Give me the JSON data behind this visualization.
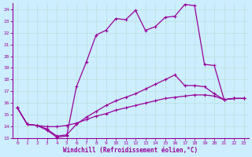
{
  "xlabel": "Windchill (Refroidissement éolien,°C)",
  "xlim": [
    -0.5,
    23.5
  ],
  "ylim": [
    13,
    24.5
  ],
  "xticks": [
    0,
    1,
    2,
    3,
    4,
    5,
    6,
    7,
    8,
    9,
    10,
    11,
    12,
    13,
    14,
    15,
    16,
    17,
    18,
    19,
    20,
    21,
    22,
    23
  ],
  "yticks": [
    13,
    14,
    15,
    16,
    17,
    18,
    19,
    20,
    21,
    22,
    23,
    24
  ],
  "background_color": "#cceeff",
  "line_color": "#990099",
  "grid_color": "#aaddcc",
  "line1_x": [
    0,
    1,
    2,
    3,
    4,
    5,
    6,
    7,
    8,
    9,
    10,
    11,
    12,
    13,
    14,
    15,
    16,
    17,
    18,
    19,
    20,
    21,
    22,
    23
  ],
  "line1_y": [
    15.6,
    14.2,
    14.1,
    13.7,
    13.1,
    13.2,
    17.4,
    19.5,
    21.8,
    22.2,
    23.2,
    23.1,
    23.9,
    22.2,
    22.5,
    23.3,
    23.4,
    24.4,
    24.3,
    19.3,
    19.2,
    16.3,
    16.4,
    16.4
  ],
  "line2_x": [
    0,
    1,
    2,
    3,
    4,
    5,
    6,
    7,
    8,
    9,
    10,
    11,
    12,
    13,
    14,
    15,
    16,
    17,
    18,
    19,
    20,
    21,
    22,
    23
  ],
  "line2_y": [
    15.6,
    14.2,
    14.1,
    13.8,
    13.2,
    13.3,
    14.2,
    14.8,
    15.3,
    15.8,
    16.2,
    16.5,
    16.8,
    17.2,
    17.6,
    18.0,
    18.4,
    17.5,
    17.5,
    17.4,
    16.8,
    16.3,
    16.4,
    16.4
  ],
  "line3_x": [
    0,
    1,
    2,
    3,
    4,
    5,
    6,
    7,
    8,
    9,
    10,
    11,
    12,
    13,
    14,
    15,
    16,
    17,
    18,
    19,
    20,
    21,
    22,
    23
  ],
  "line3_y": [
    15.6,
    14.2,
    14.1,
    14.0,
    14.0,
    14.1,
    14.3,
    14.6,
    14.9,
    15.1,
    15.4,
    15.6,
    15.8,
    16.0,
    16.2,
    16.4,
    16.5,
    16.6,
    16.7,
    16.7,
    16.6,
    16.3,
    16.4,
    16.4
  ]
}
